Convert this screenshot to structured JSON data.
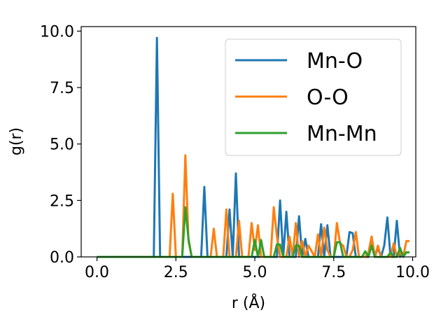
{
  "chart_data": {
    "type": "line",
    "xlabel": "r (Å)",
    "ylabel": "g(r)",
    "xlim": [
      -0.5,
      10.1
    ],
    "ylim": [
      0,
      10.2
    ],
    "xticks": [
      "0.0",
      "2.5",
      "5.0",
      "7.5",
      "10.0"
    ],
    "yticks": [
      "0.0",
      "2.5",
      "5.0",
      "7.5",
      "10.0"
    ],
    "grid": false,
    "legend_position": "top-right",
    "series": [
      {
        "name": "Mn-O",
        "color": "#1f77b4",
        "x": [
          0.0,
          1.8,
          1.9,
          2.0,
          3.3,
          3.4,
          3.5,
          4.1,
          4.2,
          4.3,
          4.4,
          4.5,
          5.7,
          5.8,
          5.9,
          6.0,
          6.1,
          6.3,
          6.4,
          6.5,
          6.6,
          6.7,
          7.0,
          7.1,
          7.2,
          7.3,
          7.4,
          7.9,
          8.0,
          8.1,
          8.2,
          8.3,
          8.6,
          8.7,
          8.8,
          8.9,
          9.0,
          9.1,
          9.2,
          9.3,
          9.4,
          9.5,
          9.6,
          9.7,
          9.8,
          9.9
        ],
        "y": [
          0,
          0,
          9.7,
          0,
          0,
          3.1,
          0,
          0,
          2.1,
          0,
          3.7,
          0,
          0,
          2.5,
          0,
          2.0,
          0,
          0,
          1.8,
          0,
          0.8,
          0,
          0,
          1.45,
          0,
          1.4,
          0,
          0,
          1.1,
          1.05,
          0,
          0,
          0,
          0.9,
          0,
          0.4,
          0,
          0.5,
          1.75,
          0,
          0,
          1.6,
          0,
          0.15,
          0.2,
          0.2
        ]
      },
      {
        "name": "O-O",
        "color": "#ff7f0e",
        "x": [
          0.0,
          2.3,
          2.4,
          2.5,
          2.7,
          2.8,
          2.9,
          3.0,
          3.6,
          3.7,
          3.8,
          4.0,
          4.1,
          4.2,
          4.4,
          4.5,
          4.6,
          4.8,
          4.9,
          5.0,
          5.1,
          5.2,
          5.3,
          5.5,
          5.6,
          5.7,
          5.8,
          6.0,
          6.1,
          6.2,
          6.3,
          6.4,
          6.5,
          6.6,
          6.7,
          6.9,
          7.0,
          7.1,
          7.2,
          7.3,
          7.4,
          7.5,
          7.6,
          7.7,
          7.8,
          7.9,
          8.0,
          8.1,
          8.2,
          8.3,
          8.4,
          8.5,
          8.6,
          8.7,
          8.8,
          8.9,
          9.0,
          9.1,
          9.2,
          9.3,
          9.4,
          9.5,
          9.6,
          9.7,
          9.8,
          9.9
        ],
        "y": [
          0,
          0,
          2.8,
          0,
          0,
          4.5,
          0.7,
          0,
          0,
          1.25,
          0,
          0,
          2.1,
          0,
          0,
          1.6,
          0,
          0,
          1.5,
          0.3,
          1.4,
          0,
          0,
          0,
          2.2,
          0.9,
          0,
          0,
          0.9,
          0,
          1.5,
          0,
          0.7,
          0,
          0.5,
          0,
          1.0,
          0,
          1.3,
          0.3,
          0,
          0,
          1.5,
          0.6,
          0.5,
          0,
          0,
          0.3,
          1.1,
          0,
          0,
          0,
          0.2,
          0.9,
          0,
          0.5,
          0,
          0,
          0,
          0,
          0.6,
          0,
          0.2,
          0,
          0.7,
          0.7
        ]
      },
      {
        "name": "Mn-Mn",
        "color": "#2ca02c",
        "x": [
          0.0,
          2.7,
          2.8,
          2.9,
          3.0,
          4.9,
          5.0,
          5.1,
          5.2,
          5.3,
          5.6,
          5.7,
          5.8,
          5.9,
          6.2,
          6.3,
          6.4,
          6.5,
          6.6,
          7.5,
          7.6,
          7.7,
          7.8,
          8.4,
          8.5,
          8.6,
          8.7,
          8.8,
          9.2,
          9.3,
          9.4,
          9.5,
          9.6,
          9.7,
          9.8,
          9.9
        ],
        "y": [
          0,
          0,
          2.2,
          0.8,
          0,
          0,
          0.75,
          0,
          0.75,
          0,
          0,
          0.55,
          0.55,
          0,
          0,
          0.5,
          0.5,
          0,
          0,
          0,
          0.65,
          0.65,
          0,
          0,
          0.25,
          0,
          0.5,
          0,
          0,
          0.2,
          0,
          0,
          0.4,
          0,
          0.2,
          0.2
        ]
      }
    ]
  }
}
